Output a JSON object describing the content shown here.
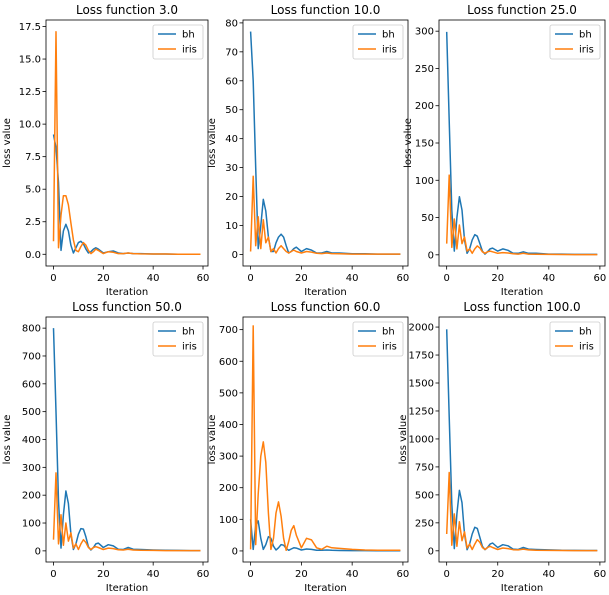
{
  "chart_data": [
    {
      "type": "line",
      "title": "Loss function 3.0",
      "xlabel": "Iteration",
      "ylabel": "loss value",
      "xlim": [
        -3,
        62
      ],
      "ylim": [
        -0.9,
        18
      ],
      "xticks": [
        0,
        20,
        40,
        60
      ],
      "xtick_labels": [
        "0",
        "20",
        "40",
        "60"
      ],
      "yticks": [
        0,
        2.5,
        5,
        7.5,
        10,
        12.5,
        15,
        17.5
      ],
      "ytick_labels": [
        "0.0",
        "2.5",
        "5.0",
        "7.5",
        "10.0",
        "12.5",
        "15.0",
        "17.5"
      ],
      "legend": "top-right",
      "series": [
        {
          "name": "bh",
          "color": "#1f77b4",
          "x": [
            0,
            1,
            2,
            3,
            4,
            5,
            6,
            7,
            8,
            9,
            10,
            11,
            12,
            13,
            14,
            15,
            16,
            17,
            18,
            20,
            22,
            24,
            26,
            28,
            30,
            32,
            35,
            40,
            45,
            50,
            55,
            59
          ],
          "y": [
            9.2,
            8.2,
            5.5,
            0.3,
            1.8,
            2.3,
            1.8,
            0.7,
            0.1,
            0.5,
            0.9,
            1.0,
            0.8,
            0.4,
            0.1,
            0.2,
            0.4,
            0.5,
            0.4,
            0.1,
            0.2,
            0.25,
            0.1,
            0.05,
            0.1,
            0.05,
            0.05,
            0.02,
            0.02,
            0.01,
            0.01,
            0.01
          ]
        },
        {
          "name": "iris",
          "color": "#ff7f0e",
          "x": [
            0,
            1,
            2,
            3,
            4,
            5,
            6,
            7,
            8,
            9,
            10,
            11,
            12,
            13,
            14,
            15,
            16,
            17,
            18,
            20,
            22,
            24,
            26,
            28,
            30,
            32,
            35,
            40,
            45,
            50,
            55,
            59
          ],
          "y": [
            1.0,
            17.1,
            0.5,
            3.0,
            4.5,
            4.5,
            3.8,
            2.4,
            1.1,
            0.3,
            0.2,
            0.6,
            0.9,
            0.7,
            0.3,
            0.05,
            0.2,
            0.4,
            0.3,
            0.05,
            0.2,
            0.15,
            0.05,
            0.05,
            0.1,
            0.05,
            0.03,
            0.02,
            0.02,
            0.01,
            0.01,
            0.01
          ]
        }
      ]
    },
    {
      "type": "line",
      "title": "Loss function 10.0",
      "xlabel": "Iteration",
      "ylabel": "loss value",
      "xlim": [
        -3,
        62
      ],
      "ylim": [
        -4,
        81
      ],
      "xticks": [
        0,
        20,
        40,
        60
      ],
      "xtick_labels": [
        "0",
        "20",
        "40",
        "60"
      ],
      "yticks": [
        0,
        10,
        20,
        30,
        40,
        50,
        60,
        70,
        80
      ],
      "ytick_labels": [
        "0",
        "10",
        "20",
        "30",
        "40",
        "50",
        "60",
        "70",
        "80"
      ],
      "legend": "top-right",
      "series": [
        {
          "name": "bh",
          "color": "#1f77b4",
          "x": [
            0,
            1,
            2,
            3,
            4,
            5,
            6,
            7,
            8,
            9,
            10,
            11,
            12,
            13,
            14,
            15,
            16,
            17,
            18,
            20,
            22,
            24,
            26,
            28,
            30,
            32,
            35,
            40,
            45,
            50,
            55,
            59
          ],
          "y": [
            77,
            60,
            30,
            2,
            10,
            19,
            15,
            6,
            1,
            1,
            4,
            6,
            7,
            6,
            3,
            0.5,
            1,
            2,
            2.5,
            1,
            2,
            1.5,
            0.5,
            0.5,
            1,
            0.5,
            0.5,
            0.2,
            0.2,
            0.1,
            0.1,
            0.1
          ]
        },
        {
          "name": "iris",
          "color": "#ff7f0e",
          "x": [
            0,
            1,
            2,
            3,
            4,
            5,
            6,
            7,
            8,
            9,
            10,
            11,
            12,
            13,
            14,
            15,
            16,
            17,
            18,
            20,
            22,
            24,
            26,
            28,
            30,
            32,
            35,
            40,
            45,
            50,
            55,
            59
          ],
          "y": [
            1,
            27,
            3,
            13,
            2,
            12,
            4,
            6,
            1,
            2,
            0.5,
            2,
            3,
            2,
            1,
            0.5,
            1,
            1.5,
            1,
            0.5,
            1,
            0.8,
            0.4,
            0.3,
            0.5,
            0.3,
            0.2,
            0.1,
            0.1,
            0.1,
            0.1,
            0.1
          ]
        }
      ]
    },
    {
      "type": "line",
      "title": "Loss function 25.0",
      "xlabel": "Iteration",
      "ylabel": "loss value",
      "xlim": [
        -3,
        62
      ],
      "ylim": [
        -15,
        315
      ],
      "xticks": [
        0,
        20,
        40,
        60
      ],
      "xtick_labels": [
        "0",
        "20",
        "40",
        "60"
      ],
      "yticks": [
        0,
        50,
        100,
        150,
        200,
        250,
        300
      ],
      "ytick_labels": [
        "0",
        "50",
        "100",
        "150",
        "200",
        "250",
        "300"
      ],
      "legend": "top-right",
      "series": [
        {
          "name": "bh",
          "color": "#1f77b4",
          "x": [
            0,
            1,
            2,
            3,
            4,
            5,
            6,
            7,
            8,
            9,
            10,
            11,
            12,
            13,
            14,
            15,
            16,
            17,
            18,
            20,
            22,
            24,
            26,
            28,
            30,
            32,
            35,
            40,
            45,
            50,
            55,
            59
          ],
          "y": [
            299,
            180,
            60,
            5,
            50,
            78,
            60,
            20,
            2,
            8,
            20,
            27,
            25,
            15,
            5,
            1,
            4,
            8,
            9,
            5,
            8,
            6,
            2,
            2,
            4,
            2,
            2,
            1,
            1,
            0.5,
            0.5,
            0.5
          ]
        },
        {
          "name": "iris",
          "color": "#ff7f0e",
          "x": [
            0,
            1,
            2,
            3,
            4,
            5,
            6,
            7,
            8,
            9,
            10,
            11,
            12,
            13,
            14,
            15,
            16,
            17,
            18,
            20,
            22,
            24,
            26,
            28,
            30,
            32,
            35,
            40,
            45,
            50,
            55,
            59
          ],
          "y": [
            15,
            107,
            10,
            48,
            8,
            40,
            15,
            24,
            5,
            8,
            2,
            8,
            12,
            9,
            4,
            2,
            4,
            5,
            4,
            2,
            3,
            2.5,
            1.5,
            1,
            2,
            1,
            0.8,
            0.5,
            0.4,
            0.3,
            0.3,
            0.3
          ]
        }
      ]
    },
    {
      "type": "line",
      "title": "Loss function 50.0",
      "xlabel": "Iteration",
      "ylabel": "loss value",
      "xlim": [
        -3,
        62
      ],
      "ylim": [
        -40,
        840
      ],
      "xticks": [
        0,
        20,
        40,
        60
      ],
      "xtick_labels": [
        "0",
        "20",
        "40",
        "60"
      ],
      "yticks": [
        0,
        100,
        200,
        300,
        400,
        500,
        600,
        700,
        800
      ],
      "ytick_labels": [
        "0",
        "100",
        "200",
        "300",
        "400",
        "500",
        "600",
        "700",
        "800"
      ],
      "legend": "top-right",
      "series": [
        {
          "name": "bh",
          "color": "#1f77b4",
          "x": [
            0,
            1,
            2,
            3,
            4,
            5,
            6,
            7,
            8,
            9,
            10,
            11,
            12,
            13,
            14,
            15,
            16,
            17,
            18,
            20,
            22,
            24,
            26,
            28,
            30,
            32,
            35,
            40,
            45,
            50,
            55,
            59
          ],
          "y": [
            800,
            500,
            180,
            10,
            130,
            215,
            170,
            60,
            5,
            25,
            60,
            80,
            78,
            50,
            15,
            3,
            12,
            25,
            28,
            12,
            22,
            18,
            6,
            5,
            12,
            6,
            5,
            3,
            2,
            1.5,
            1,
            1
          ]
        },
        {
          "name": "iris",
          "color": "#ff7f0e",
          "x": [
            0,
            1,
            2,
            3,
            4,
            5,
            6,
            7,
            8,
            9,
            10,
            11,
            12,
            13,
            14,
            15,
            16,
            17,
            18,
            20,
            22,
            24,
            26,
            28,
            30,
            32,
            35,
            40,
            45,
            50,
            55,
            59
          ],
          "y": [
            40,
            280,
            25,
            130,
            20,
            100,
            35,
            65,
            10,
            25,
            5,
            25,
            40,
            30,
            12,
            5,
            12,
            15,
            12,
            5,
            10,
            8,
            4,
            3,
            6,
            3,
            2,
            1.5,
            1,
            1,
            1,
            1
          ]
        }
      ]
    },
    {
      "type": "line",
      "title": "Loss function 60.0",
      "xlabel": "Iteration",
      "ylabel": "loss value",
      "xlim": [
        -3,
        62
      ],
      "ylim": [
        -35,
        740
      ],
      "xticks": [
        0,
        20,
        40,
        60
      ],
      "xtick_labels": [
        "0",
        "20",
        "40",
        "60"
      ],
      "yticks": [
        0,
        100,
        200,
        300,
        400,
        500,
        600,
        700
      ],
      "ytick_labels": [
        "0",
        "100",
        "200",
        "300",
        "400",
        "500",
        "600",
        "700"
      ],
      "legend": "top-right",
      "series": [
        {
          "name": "bh",
          "color": "#1f77b4",
          "x": [
            0,
            1,
            2,
            3,
            4,
            5,
            6,
            7,
            8,
            9,
            10,
            11,
            12,
            13,
            14,
            15,
            16,
            17,
            18,
            20,
            22,
            24,
            26,
            28,
            30,
            32,
            35,
            40,
            45,
            50,
            55,
            59
          ],
          "y": [
            100,
            5,
            80,
            95,
            40,
            5,
            20,
            45,
            40,
            15,
            3,
            10,
            20,
            18,
            8,
            2,
            6,
            10,
            9,
            3,
            6,
            5,
            2,
            2,
            3,
            2,
            1.5,
            1,
            1,
            0.5,
            0.5,
            0.5
          ]
        },
        {
          "name": "iris",
          "color": "#ff7f0e",
          "x": [
            0,
            1,
            2,
            3,
            4,
            5,
            6,
            7,
            8,
            9,
            10,
            11,
            12,
            13,
            14,
            15,
            16,
            17,
            18,
            20,
            22,
            24,
            26,
            28,
            30,
            32,
            35,
            40,
            45,
            50,
            55,
            59
          ],
          "y": [
            5,
            712,
            20,
            180,
            300,
            345,
            280,
            120,
            5,
            40,
            120,
            155,
            110,
            40,
            2,
            30,
            65,
            80,
            50,
            10,
            40,
            35,
            10,
            5,
            15,
            10,
            8,
            5,
            3,
            2,
            2,
            2
          ]
        }
      ]
    },
    {
      "type": "line",
      "title": "Loss function 100.0",
      "xlabel": "Iteration",
      "ylabel": "loss value",
      "xlim": [
        -3,
        62
      ],
      "ylim": [
        -100,
        2090
      ],
      "xticks": [
        0,
        20,
        40,
        60
      ],
      "xtick_labels": [
        "0",
        "20",
        "40",
        "60"
      ],
      "yticks": [
        0,
        250,
        500,
        750,
        1000,
        1250,
        1500,
        1750,
        2000
      ],
      "ytick_labels": [
        "0",
        "250",
        "500",
        "750",
        "1000",
        "1250",
        "1500",
        "1750",
        "2000"
      ],
      "legend": "top-right",
      "series": [
        {
          "name": "bh",
          "color": "#1f77b4",
          "x": [
            0,
            1,
            2,
            3,
            4,
            5,
            6,
            7,
            8,
            9,
            10,
            11,
            12,
            13,
            14,
            15,
            16,
            17,
            18,
            20,
            22,
            24,
            26,
            28,
            30,
            32,
            35,
            40,
            45,
            50,
            55,
            59
          ],
          "y": [
            1980,
            1200,
            420,
            20,
            330,
            540,
            430,
            150,
            10,
            60,
            150,
            210,
            200,
            120,
            40,
            10,
            30,
            60,
            70,
            30,
            55,
            45,
            15,
            12,
            30,
            15,
            12,
            8,
            5,
            4,
            3,
            3
          ]
        },
        {
          "name": "iris",
          "color": "#ff7f0e",
          "x": [
            0,
            1,
            2,
            3,
            4,
            5,
            6,
            7,
            8,
            9,
            10,
            11,
            12,
            13,
            14,
            15,
            16,
            17,
            18,
            20,
            22,
            24,
            26,
            28,
            30,
            32,
            35,
            40,
            45,
            50,
            55,
            59
          ],
          "y": [
            150,
            700,
            50,
            330,
            40,
            260,
            90,
            170,
            25,
            60,
            12,
            60,
            100,
            75,
            30,
            12,
            30,
            40,
            30,
            12,
            25,
            20,
            10,
            8,
            15,
            8,
            5,
            4,
            3,
            2,
            2,
            2
          ]
        }
      ]
    }
  ]
}
